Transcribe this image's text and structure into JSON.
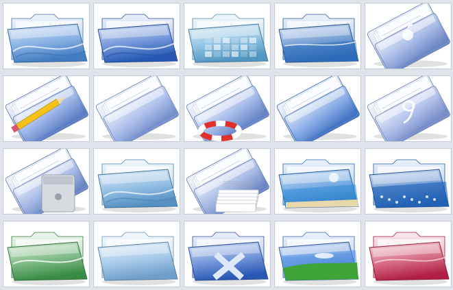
{
  "gallery": {
    "rows": [
      {
        "tiles": [
          {
            "icon": "folder-blue-swirl-icon",
            "accent": "#4a8ad6",
            "motif": "swirl"
          },
          {
            "icon": "folder-blue-wave-icon",
            "accent": "#2a62c8",
            "motif": "wave"
          },
          {
            "icon": "folder-blue-squares-icon",
            "accent": "#5aa6d6",
            "motif": "squares"
          },
          {
            "icon": "folder-blue-ocean-icon",
            "accent": "#2f6fc0",
            "motif": "ocean"
          },
          {
            "icon": "folder-apple-logo-icon",
            "accent": "#6f8fd8",
            "motif": "apple"
          }
        ]
      },
      {
        "tiles": [
          {
            "icon": "folder-documents-pencil-icon",
            "accent": "#5b84d8",
            "motif": "pencil"
          },
          {
            "icon": "folder-documents-icon",
            "accent": "#7a9ae0",
            "motif": "docs"
          },
          {
            "icon": "folder-lifebuoy-icon",
            "accent": "#6a8edb",
            "motif": "lifebuoy"
          },
          {
            "icon": "folder-blue-plain-icon",
            "accent": "#3f79d8",
            "motif": "plain"
          },
          {
            "icon": "folder-os9-icon",
            "accent": "#7c97dd",
            "motif": "nine"
          }
        ]
      },
      {
        "tiles": [
          {
            "icon": "folder-server-icon",
            "accent": "#6e8fd8",
            "motif": "server"
          },
          {
            "icon": "folder-light-swirl-icon",
            "accent": "#5ea0d8",
            "motif": "lightswirl"
          },
          {
            "icon": "folder-papers-stack-icon",
            "accent": "#6f8ed6",
            "motif": "papers"
          },
          {
            "icon": "folder-beach-icon",
            "accent": "#2f7fd2",
            "motif": "beach"
          },
          {
            "icon": "folder-underwater-icon",
            "accent": "#2e6fc2",
            "motif": "underwater"
          }
        ]
      },
      {
        "tiles": [
          {
            "icon": "folder-green-icon",
            "accent": "#3e9a4a",
            "motif": "green"
          },
          {
            "icon": "folder-pale-blue-icon",
            "accent": "#7ab0e0",
            "motif": "pale"
          },
          {
            "icon": "folder-x-logo-icon",
            "accent": "#2e62c8",
            "motif": "x"
          },
          {
            "icon": "folder-bliss-icon",
            "accent": "#3e7bd6",
            "motif": "bliss"
          },
          {
            "icon": "folder-red-icon",
            "accent": "#c4224a",
            "motif": "red"
          }
        ]
      }
    ]
  }
}
